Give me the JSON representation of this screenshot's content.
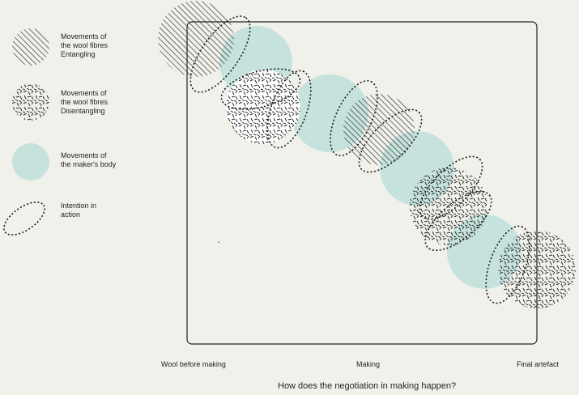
{
  "legend": {
    "entangling": "Movements of\nthe wool fibres\nEntangling",
    "disentangling": "Movements of\nthe wool fibres\nDisentangling",
    "body": "Movements of\nthe maker's body",
    "intention": "Intention in\naction"
  },
  "axis": {
    "start": "Wool before making",
    "middle": "Making",
    "end": "Final artefact",
    "title": "How does the negotiation in making happen?"
  },
  "colors": {
    "background": "#f1f1ec",
    "body_fill": "#c6e2dc",
    "ink": "#222222"
  },
  "icons": {
    "entangling": "hatched-circle-icon",
    "disentangling": "speckled-circle-icon",
    "body": "teal-circle-icon",
    "intention": "dashed-ellipse-icon"
  }
}
